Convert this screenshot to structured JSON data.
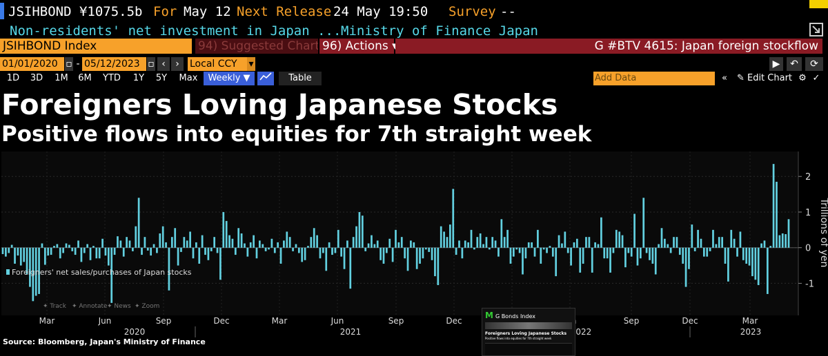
{
  "header": {
    "ticker_price": "JSIHBOND ¥1075.5b",
    "for_label": "For",
    "for_date": "May 12",
    "next_label": "Next Release",
    "next_value": "24 May 19:50",
    "survey_label": "Survey",
    "survey_value": "--",
    "description": "Non-residents' net investment in Japan ...",
    "source_org": "Ministry of Finance Japan"
  },
  "toolbar": {
    "security": "JSIHBOND Index",
    "suggested": "94) Suggested Charts",
    "actions": "96) Actions ▾",
    "story": "G #BTV 4615: Japan foreign stockflow"
  },
  "range": {
    "start": "01/01/2020",
    "end": "05/12/2023",
    "currency": "Local CCY",
    "periods": [
      "1D",
      "3D",
      "1M",
      "6M",
      "YTD",
      "1Y",
      "5Y",
      "Max"
    ],
    "frequency": "Weekly ▼",
    "table_label": "Table",
    "add_data_placeholder": "Add Data",
    "edit_chart": "Edit Chart"
  },
  "headline": "Foreigners Loving Japanese Stocks",
  "subhead": "Positive flows into equities for 7th straight week",
  "chart_data": {
    "type": "bar",
    "series": [
      {
        "name": "Foreigners' net sales/purchases of Japan stocks",
        "values": [
          -0.18,
          -0.25,
          -0.15,
          0.08,
          -0.45,
          -0.22,
          -0.5,
          -0.4,
          -0.75,
          -1.1,
          -1.5,
          -1.35,
          -1.3,
          0.12,
          -0.48,
          -0.22,
          -0.2,
          0.05,
          0.1,
          -0.3,
          -0.15,
          0.12,
          0.08,
          -0.1,
          -0.2,
          0.2,
          -0.4,
          -0.15,
          0.1,
          -0.35,
          0.05,
          -0.3,
          -0.3,
          0.25,
          -0.22,
          -0.5,
          -1.55,
          -0.2,
          0.32,
          0.2,
          -0.25,
          0.3,
          0.2,
          -0.1,
          0.6,
          1.4,
          -0.2,
          0.3,
          -0.08,
          -0.22,
          0.1,
          -0.15,
          0.4,
          0.6,
          0.15,
          -1.2,
          0.3,
          0.55,
          -0.5,
          -0.12,
          0.3,
          0.2,
          0.45,
          -0.3,
          0.15,
          -0.45,
          0.35,
          -0.2,
          -0.35,
          -0.1,
          0.3,
          -0.15,
          -0.9,
          1.0,
          0.75,
          0.35,
          0.25,
          -0.2,
          0.55,
          0.4,
          0.12,
          -0.25,
          0.15,
          0.35,
          -0.3,
          0.2,
          0.1,
          -0.1,
          -0.05,
          0.25,
          -0.15,
          0.15,
          -0.45,
          0.2,
          0.45,
          0.3,
          -0.1,
          0.1,
          -0.15,
          -0.4,
          -0.35,
          0.05,
          0.3,
          0.55,
          0.35,
          -0.3,
          -0.15,
          -0.65,
          0.15,
          -0.2,
          -0.15,
          0.5,
          -0.25,
          -0.6,
          0.2,
          -1.15,
          0.3,
          0.6,
          1.0,
          0.9,
          -0.1,
          0.12,
          0.35,
          0.1,
          0.2,
          -0.35,
          -0.45,
          -0.15,
          0.25,
          -0.4,
          0.5,
          0.15,
          0.3,
          -0.3,
          -0.65,
          0.2,
          0.15,
          -0.6,
          -0.45,
          -0.3,
          -0.05,
          -0.12,
          -0.35,
          -0.8,
          -1.05,
          0.6,
          0.45,
          0.3,
          0.65,
          1.65,
          -0.2,
          0.2,
          -0.3,
          0.2,
          0.15,
          0.5,
          -0.05,
          0.3,
          0.4,
          0.1,
          0.3,
          -0.05,
          0.3,
          0.2,
          -0.25,
          0.8,
          0.3,
          0.5,
          -0.45,
          -0.25,
          -0.05,
          -0.15,
          -0.75,
          -0.3,
          0.15,
          0.15,
          -0.25,
          0.5,
          -0.45,
          -0.05,
          -0.15,
          0.05,
          -0.25,
          -0.8,
          0.35,
          0.12,
          0.45,
          -0.15,
          -0.5,
          0.15,
          0.25,
          -0.7,
          -0.45,
          0.3,
          0.3,
          -0.7,
          0.15,
          0.1,
          0.85,
          -0.3,
          -0.3,
          -0.7,
          -0.15,
          0.5,
          0.45,
          0.35,
          -0.55,
          -0.15,
          -0.25,
          0.95,
          -0.5,
          -0.3,
          1.4,
          -0.15,
          -0.35,
          -0.45,
          -0.75,
          0.1,
          0.55,
          0.25,
          0.1,
          -0.15,
          0.3,
          0.3,
          -0.2,
          -0.45,
          -1.1,
          -0.6,
          0.65,
          -0.1,
          0.5,
          0.25,
          -0.25,
          -0.25,
          -0.1,
          0.5,
          0.1,
          0.3,
          0.3,
          -0.45,
          -0.95,
          0.5,
          0.25,
          -0.25,
          0.45,
          -0.35,
          -0.45,
          -0.5,
          -0.8,
          -0.9,
          -1.05,
          0.12,
          0.2,
          -1.3,
          0.05,
          2.35,
          1.85,
          0.35,
          0.4,
          0.38,
          0.8
        ]
      }
    ],
    "x_tick_labels": [
      "Mar",
      "Jun",
      "Sep",
      "Dec",
      "Mar",
      "Jun",
      "Sep",
      "Dec",
      "Mar",
      "Jun",
      "Sep",
      "Dec",
      "Mar"
    ],
    "x_year_labels": [
      "2020",
      "2021",
      "2022",
      "2023"
    ],
    "y_ticks": [
      2,
      1,
      0,
      -1
    ],
    "ylabel": "Trillions of yen",
    "ylim": [
      -1.9,
      2.7
    ],
    "legend_placement": "left",
    "legend_label": "Foreigners' net sales/purchases of Japan stocks",
    "grid": true,
    "bar_color": "#62d0e0"
  },
  "chart_tools": [
    "Track",
    "Annotate",
    "News",
    "Zoom"
  ],
  "source": "Source: Bloomberg, Japan's Ministry of Finance",
  "thumbnail": {
    "title": "G Bonds Index",
    "headline": "Foreigners Loving Japanese Stocks",
    "sub": "Positive flows into equities for 7th straight week"
  },
  "colors": {
    "accent": "#f7a12a",
    "red": "#8a1b24",
    "cyan": "#56d8e8",
    "blue": "#3a5fd9"
  }
}
